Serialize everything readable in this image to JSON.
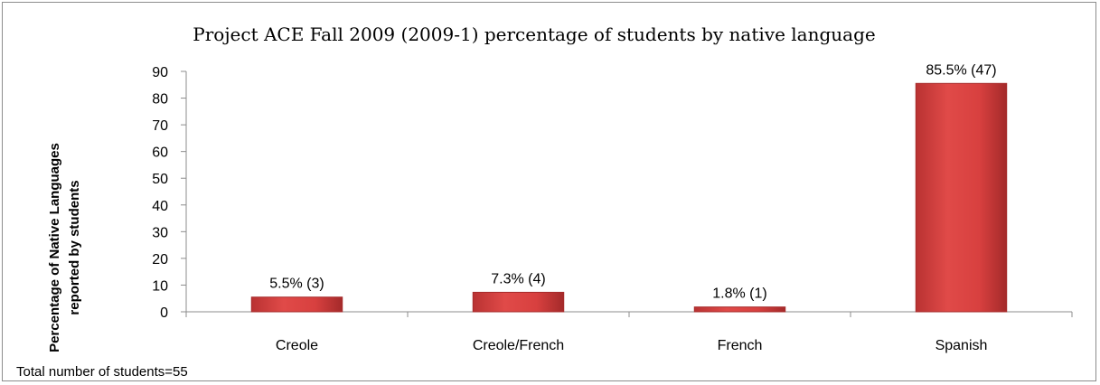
{
  "chart_data": {
    "type": "bar",
    "title": "Project ACE Fall 2009 (2009-1) percentage of students by native language",
    "ylabel_lines": [
      "Percentage of Native Languages",
      "reported by  students"
    ],
    "xlabel": "",
    "categories": [
      "Creole",
      "Creole/French",
      "French",
      "Spanish"
    ],
    "values": [
      5.5,
      7.3,
      1.8,
      85.5
    ],
    "data_labels": [
      "5.5% (3)",
      "7.3% (4)",
      "1.8% (1)",
      "85.5% (47)"
    ],
    "ylim": [
      0,
      90
    ],
    "yticks": [
      "0",
      "10",
      "20",
      "30",
      "40",
      "50",
      "60",
      "70",
      "80",
      "90"
    ],
    "grid": false,
    "legend": "none",
    "bar_color": "#d8403f",
    "bar_edge_color": "#a62b2b"
  },
  "footnote": "Total number of students=55"
}
